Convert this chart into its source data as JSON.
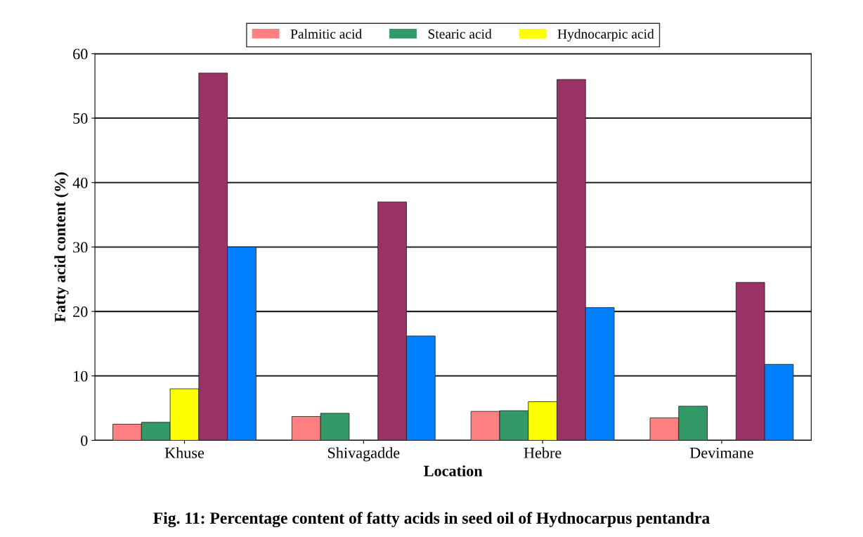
{
  "chart_data": {
    "type": "bar",
    "title": "Fig. 11: Percentage content of fatty acids in seed oil of Hydnocarpus pentandra",
    "xlabel": "Location",
    "ylabel": "Fatty acid content (%)",
    "categories": [
      "Khuse",
      "Shivagadde",
      "Hebre",
      "Devimane"
    ],
    "series": [
      {
        "name": "Palmitic acid",
        "color": "#ff8080",
        "values": [
          2.5,
          3.7,
          4.5,
          3.5
        ]
      },
      {
        "name": "Stearic acid",
        "color": "#339966",
        "values": [
          2.8,
          4.2,
          4.6,
          5.3
        ]
      },
      {
        "name": "Hydnocarpic acid",
        "color": "#ffff00",
        "values": [
          8,
          null,
          6,
          null
        ]
      },
      {
        "color": "#993366",
        "values": [
          57,
          37,
          56,
          24.5
        ]
      },
      {
        "color": "#0080ff",
        "values": [
          30,
          16.2,
          20.6,
          11.8
        ]
      }
    ],
    "ylim": [
      0,
      60
    ],
    "yticks": [
      0,
      10,
      20,
      30,
      40,
      50,
      60
    ],
    "grid": "y",
    "legend": "top"
  }
}
